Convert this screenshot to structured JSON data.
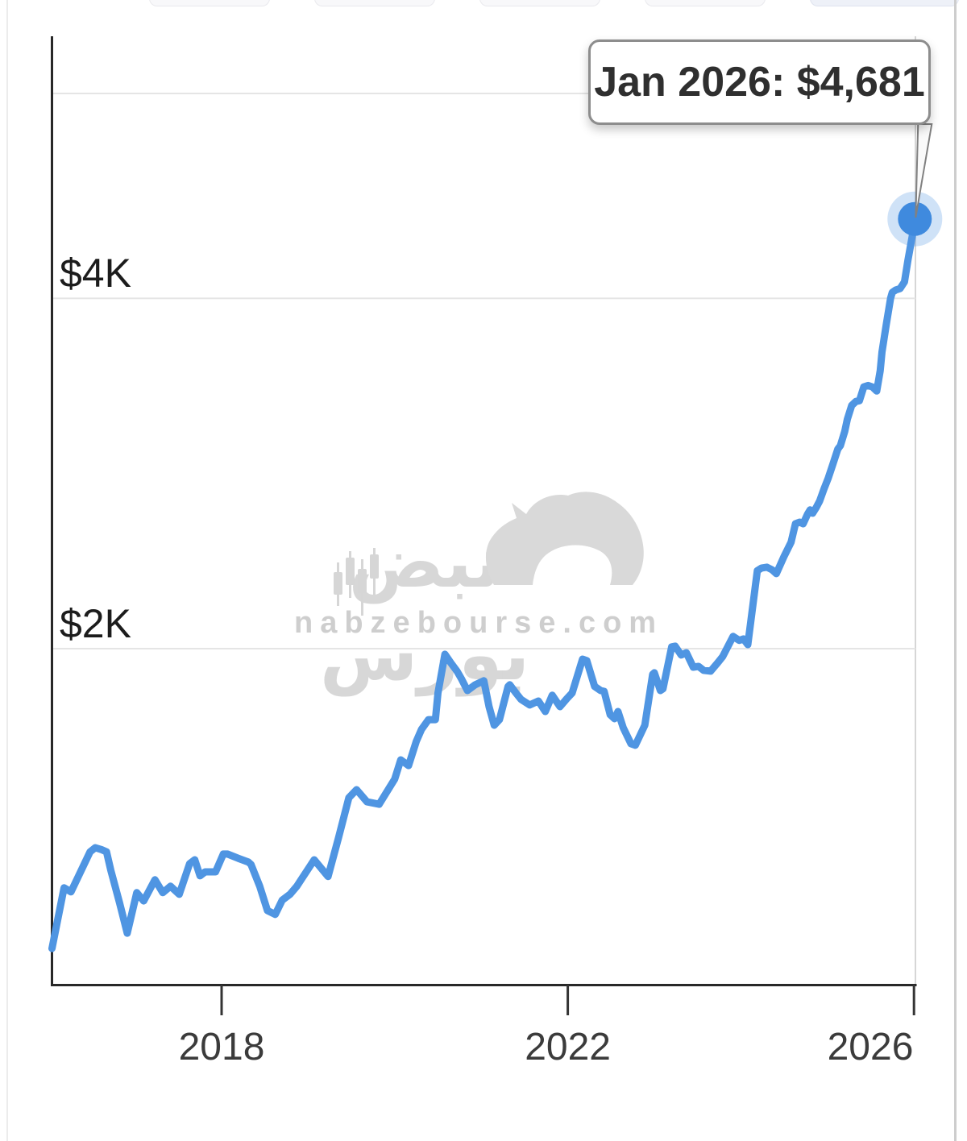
{
  "tooltip": {
    "text": "Jan 2026: $4,681"
  },
  "watermark": {
    "logo_text": "نبض بورس",
    "site": "nabzebourse.com"
  },
  "colors": {
    "line": "#4f95e2",
    "marker": "#3f8ade",
    "gridline": "#e5e5e5",
    "axis": "#282828"
  },
  "chart_data": {
    "type": "line",
    "title": "",
    "xlabel": "",
    "ylabel": "",
    "y_scale": "log",
    "grid": "horizontal-only",
    "legend": "none",
    "x_unit": "decimal_year",
    "x_range": [
      2016.0,
      2026.1
    ],
    "y_range_visible": [
      1050,
      5200
    ],
    "yticks": [
      {
        "label": "$4K",
        "value": 4000
      },
      {
        "label": "$2K",
        "value": 2000
      }
    ],
    "gridline_values": [
      6000,
      4000,
      2000
    ],
    "xticks": [
      {
        "label": "2018",
        "value": 2018
      },
      {
        "label": "2022",
        "value": 2022
      },
      {
        "label": "2026",
        "value": 2026
      }
    ],
    "last_point": {
      "label": "Jan 2026",
      "value": 4681
    },
    "x": [
      2016.04,
      2016.18,
      2016.26,
      2016.48,
      2016.54,
      2016.61,
      2016.67,
      2016.72,
      2016.82,
      2016.91,
      2017.02,
      2017.1,
      2017.23,
      2017.32,
      2017.41,
      2017.51,
      2017.63,
      2017.69,
      2017.75,
      2017.81,
      2017.93,
      2018.02,
      2018.07,
      2018.19,
      2018.31,
      2018.34,
      2018.44,
      2018.53,
      2018.62,
      2018.7,
      2018.79,
      2018.87,
      2018.93,
      2019.07,
      2019.23,
      2019.35,
      2019.47,
      2019.56,
      2019.68,
      2019.82,
      2020.0,
      2020.07,
      2020.16,
      2020.25,
      2020.31,
      2020.39,
      2020.47,
      2020.5,
      2020.58,
      2020.65,
      2020.72,
      2020.77,
      2020.84,
      2020.93,
      2021.03,
      2021.09,
      2021.15,
      2021.21,
      2021.31,
      2021.33,
      2021.4,
      2021.46,
      2021.56,
      2021.66,
      2021.74,
      2021.82,
      2021.91,
      2021.99,
      2022.05,
      2022.17,
      2022.22,
      2022.31,
      2022.38,
      2022.42,
      2022.49,
      2022.54,
      2022.58,
      2022.64,
      2022.73,
      2022.78,
      2022.89,
      2022.98,
      2023.0,
      2023.07,
      2023.1,
      2023.2,
      2023.24,
      2023.31,
      2023.37,
      2023.45,
      2023.51,
      2023.57,
      2023.65,
      2023.73,
      2023.79,
      2023.91,
      2023.98,
      2024.03,
      2024.08,
      2024.19,
      2024.24,
      2024.3,
      2024.36,
      2024.41,
      2024.5,
      2024.58,
      2024.63,
      2024.68,
      2024.72,
      2024.77,
      2024.8,
      2024.83,
      2024.87,
      2024.91,
      2024.96,
      2025.01,
      2025.06,
      2025.12,
      2025.15,
      2025.2,
      2025.23,
      2025.28,
      2025.33,
      2025.37,
      2025.42,
      2025.47,
      2025.52,
      2025.57,
      2025.61,
      2025.63,
      2025.68,
      2025.73,
      2025.75,
      2025.79,
      2025.84,
      2025.89,
      2025.93,
      2025.98,
      2026.01
    ],
    "values": [
      1105,
      1246,
      1236,
      1338,
      1349,
      1344,
      1338,
      1290,
      1210,
      1139,
      1234,
      1214,
      1266,
      1234,
      1250,
      1230,
      1307,
      1317,
      1276,
      1286,
      1286,
      1332,
      1332,
      1321,
      1311,
      1305,
      1250,
      1191,
      1182,
      1216,
      1230,
      1250,
      1270,
      1317,
      1274,
      1375,
      1489,
      1513,
      1477,
      1470,
      1545,
      1605,
      1587,
      1665,
      1705,
      1738,
      1738,
      1832,
      1978,
      1944,
      1913,
      1885,
      1841,
      1862,
      1877,
      1783,
      1719,
      1738,
      1856,
      1862,
      1832,
      1809,
      1789,
      1803,
      1766,
      1824,
      1783,
      1812,
      1832,
      1959,
      1953,
      1856,
      1841,
      1838,
      1755,
      1741,
      1766,
      1711,
      1657,
      1652,
      1719,
      1901,
      1907,
      1841,
      1847,
      2007,
      2010,
      1975,
      1984,
      1928,
      1931,
      1916,
      1913,
      1944,
      1969,
      2049,
      2033,
      2039,
      2016,
      2334,
      2346,
      2350,
      2338,
      2320,
      2402,
      2469,
      2561,
      2569,
      2561,
      2610,
      2632,
      2615,
      2644,
      2678,
      2743,
      2804,
      2876,
      2969,
      2989,
      3075,
      3149,
      3236,
      3262,
      3267,
      3357,
      3367,
      3357,
      3330,
      3467,
      3597,
      3798,
      4002,
      4048,
      4067,
      4079,
      4133,
      4314,
      4526,
      4681
    ]
  }
}
